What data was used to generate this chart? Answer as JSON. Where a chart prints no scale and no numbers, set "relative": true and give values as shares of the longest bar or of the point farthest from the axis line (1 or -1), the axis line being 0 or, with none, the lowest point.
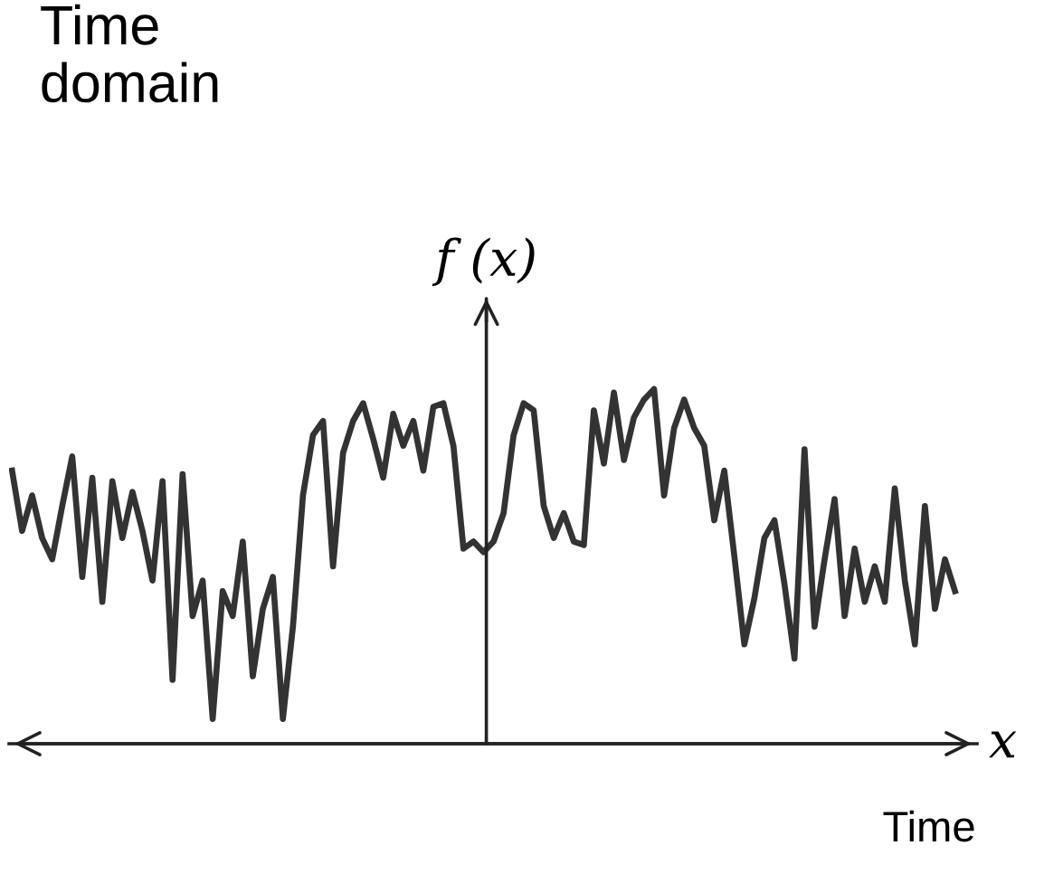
{
  "chart_data": {
    "type": "line",
    "title": "Time domain",
    "ylabel": "f (x)",
    "xlabel": "x",
    "annotations": [
      "Time"
    ],
    "relative": true,
    "grid": false,
    "legend": false,
    "marker": "none",
    "line_style": "solid",
    "categories": [
      null,
      null,
      null,
      null,
      null,
      null,
      null,
      null,
      null,
      null,
      null,
      null,
      null,
      null,
      null,
      null,
      null,
      null,
      null,
      null,
      null,
      null,
      null,
      null,
      null,
      null,
      null,
      null,
      null,
      null,
      null,
      null,
      null,
      null,
      null,
      null,
      null,
      null,
      null,
      null,
      null,
      null,
      null,
      null,
      null,
      null,
      null,
      null,
      null,
      null,
      null,
      null,
      null,
      null,
      null,
      null,
      null,
      null,
      null,
      null,
      null,
      null,
      null,
      null,
      null,
      null,
      null,
      null,
      null,
      null,
      null,
      null,
      null,
      null,
      null,
      null,
      null,
      null,
      null,
      null,
      null,
      null,
      null,
      null,
      null,
      null,
      null,
      null,
      null,
      null,
      null,
      null,
      null,
      null,
      null
    ],
    "series": [
      {
        "color": "#333333",
        "values": [
          0.77,
          0.6,
          0.7,
          0.58,
          0.52,
          0.67,
          0.81,
          0.47,
          0.75,
          0.4,
          0.74,
          0.58,
          0.71,
          0.6,
          0.46,
          0.74,
          0.18,
          0.76,
          0.36,
          0.46,
          0.07,
          0.43,
          0.36,
          0.57,
          0.19,
          0.38,
          0.47,
          0.07,
          0.33,
          0.7,
          0.87,
          0.91,
          0.5,
          0.82,
          0.91,
          0.96,
          0.86,
          0.75,
          0.93,
          0.84,
          0.91,
          0.77,
          0.95,
          0.96,
          0.84,
          0.55,
          0.57,
          0.54,
          0.57,
          0.65,
          0.87,
          0.96,
          0.94,
          0.67,
          0.58,
          0.65,
          0.57,
          0.56,
          0.94,
          0.79,
          0.99,
          0.8,
          0.92,
          0.97,
          1.0,
          0.7,
          0.89,
          0.97,
          0.89,
          0.84,
          0.63,
          0.77,
          0.53,
          0.28,
          0.41,
          0.58,
          0.63,
          0.45,
          0.24,
          0.83,
          0.33,
          0.52,
          0.69,
          0.36,
          0.55,
          0.4,
          0.5,
          0.4,
          0.72,
          0.46,
          0.28,
          0.67,
          0.38,
          0.52,
          0.43
        ]
      }
    ]
  }
}
